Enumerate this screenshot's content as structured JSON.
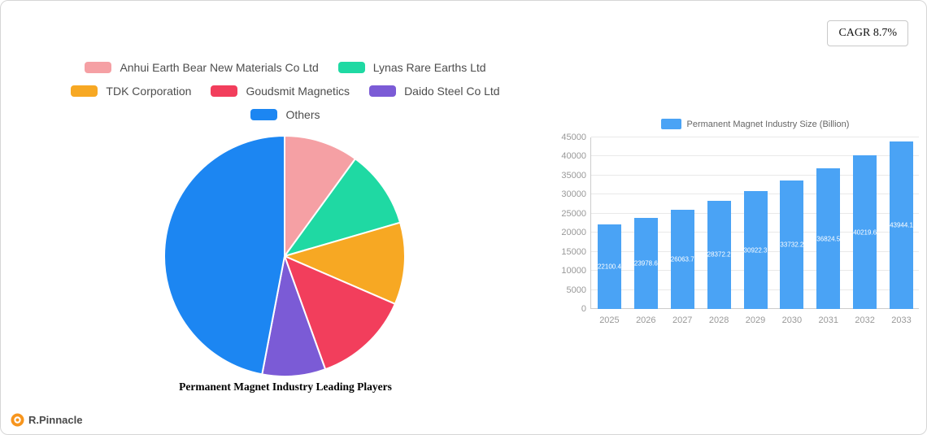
{
  "cagr_badge": {
    "label": "CAGR 8.7%"
  },
  "brand": {
    "name": "R.Pinnacle"
  },
  "chart_data": [
    {
      "type": "pie",
      "title": "Permanent Magnet Industry Leading Players",
      "legend_position": "top",
      "series": [
        {
          "name": "Anhui Earth Bear New Materials Co  Ltd",
          "value": 10,
          "color": "#F5A0A4"
        },
        {
          "name": "Lynas Rare Earths Ltd",
          "value": 10.5,
          "color": "#1FD9A3"
        },
        {
          "name": "TDK Corporation",
          "value": 11,
          "color": "#F7A823"
        },
        {
          "name": "Goudsmit Magnetics",
          "value": 13,
          "color": "#F23E5C"
        },
        {
          "name": "Daido Steel Co  Ltd",
          "value": 8.5,
          "color": "#7B5BD6"
        },
        {
          "name": "Others",
          "value": 47,
          "color": "#1C86F2"
        }
      ]
    },
    {
      "type": "bar",
      "legend": [
        "Permanent Magnet Industry Size (Billion)"
      ],
      "categories": [
        "2025",
        "2026",
        "2027",
        "2028",
        "2029",
        "2030",
        "2031",
        "2032",
        "2033"
      ],
      "values": [
        22100.4,
        23978.6,
        26063.7,
        28372.2,
        30922.3,
        33732.2,
        36824.5,
        40219.6,
        43944.1
      ],
      "bar_color": "#4AA3F5",
      "label_color": "#ffffff",
      "ylim": [
        0,
        45000
      ],
      "yticks": [
        0,
        5000,
        10000,
        15000,
        20000,
        25000,
        30000,
        35000,
        40000,
        45000
      ],
      "grid": true,
      "legend_position": "top"
    }
  ]
}
